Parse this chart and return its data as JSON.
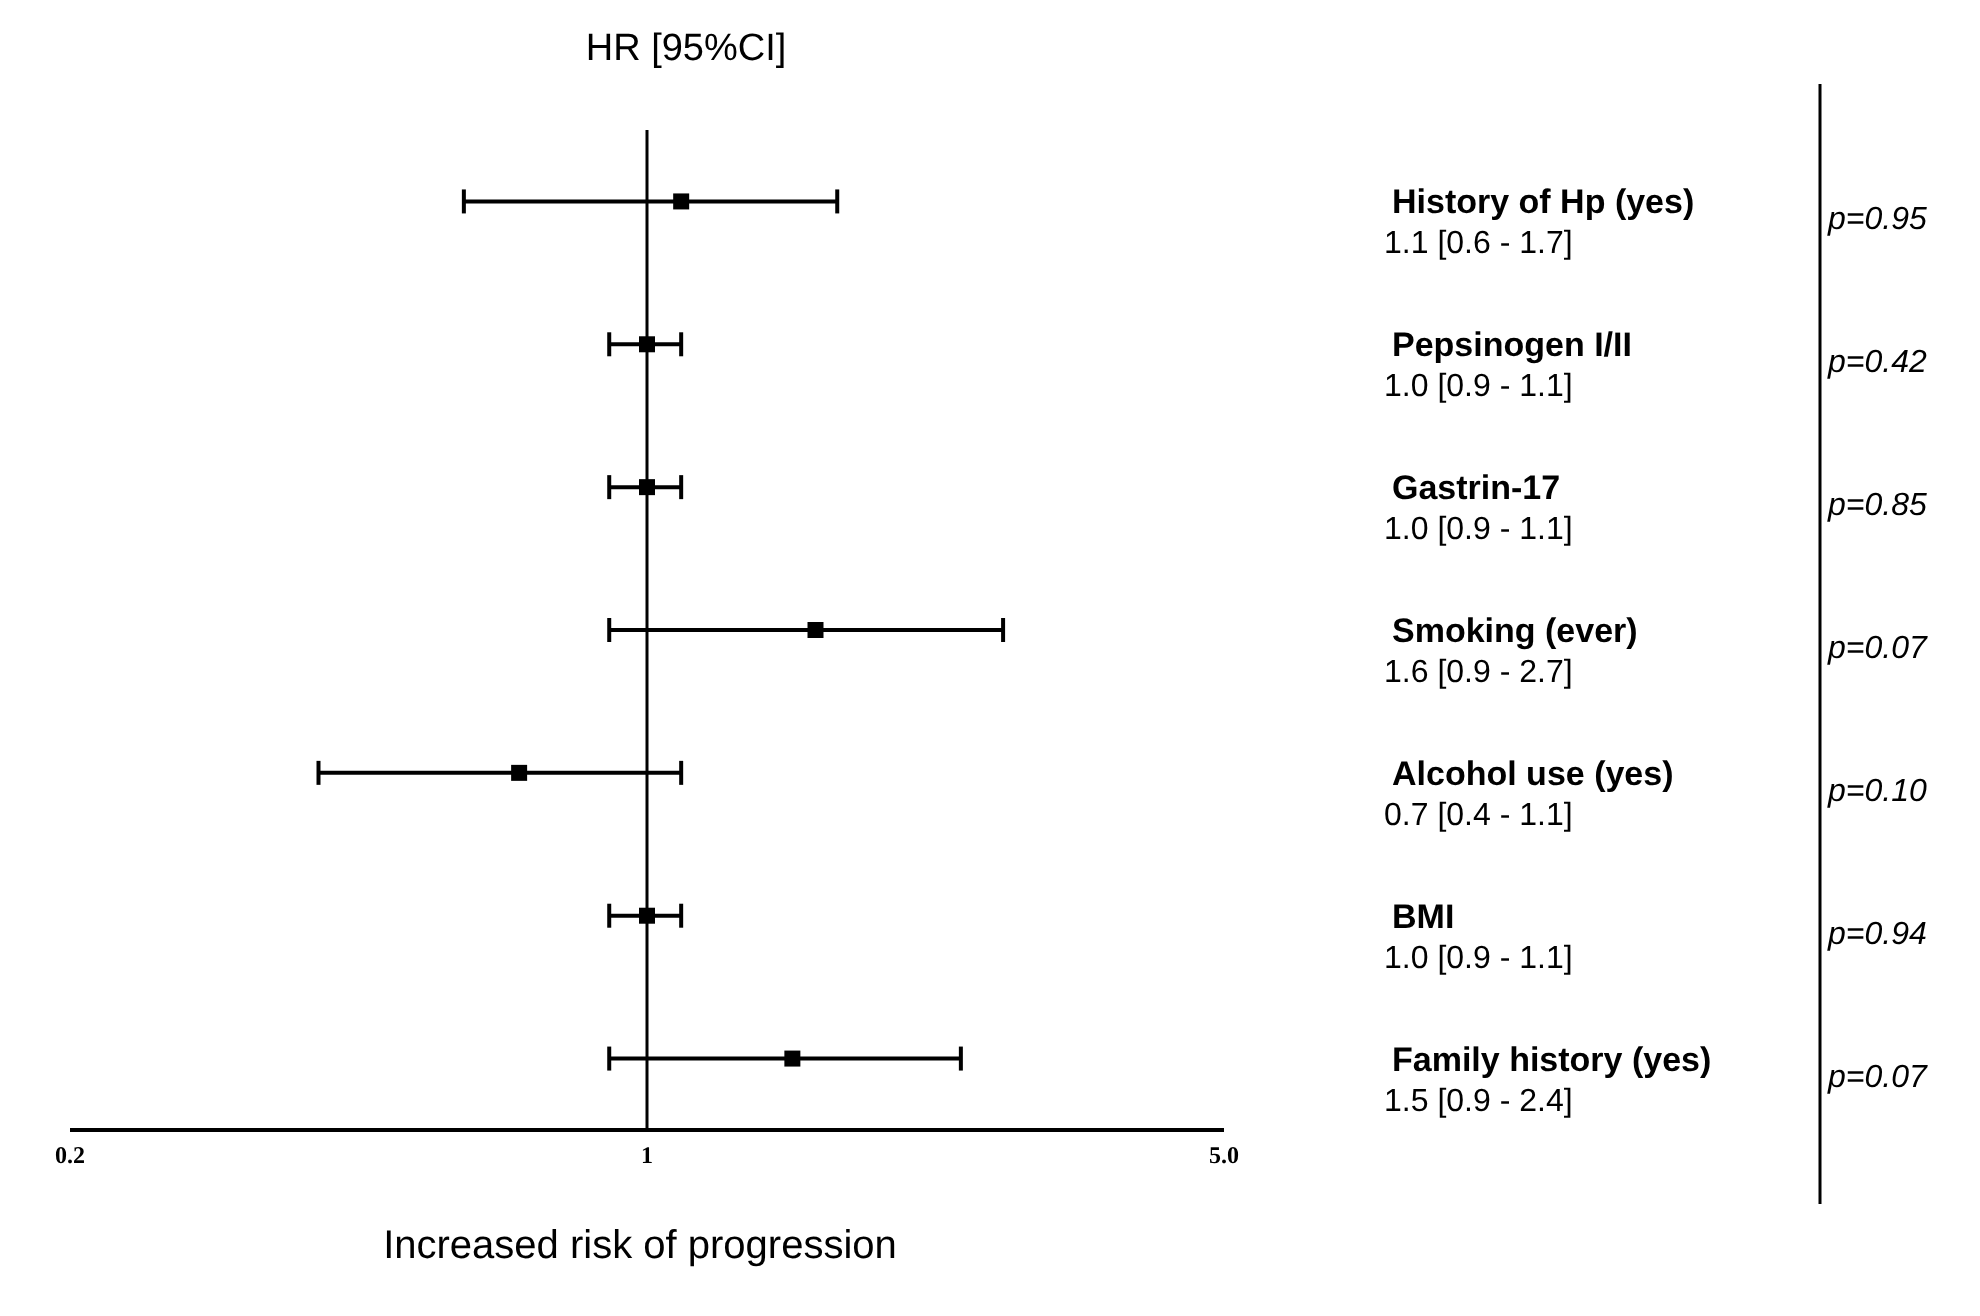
{
  "chart_data": {
    "type": "scatter",
    "orientation": "horizontal",
    "title": "HR [95%CI]",
    "xlabel": "Increased risk of progression",
    "categories": [
      "History of  Hp  (yes)",
      "Pepsinogen  I/II",
      "Gastrin-17",
      "Smoking  (ever)",
      "Alcohol use  (yes)",
      "BMI",
      "Family history (yes)"
    ],
    "values": [
      1.1,
      1.0,
      1.0,
      1.6,
      0.7,
      1.0,
      1.5
    ],
    "errors": [
      [
        0.6,
        1.7
      ],
      [
        0.9,
        1.1
      ],
      [
        0.9,
        1.1
      ],
      [
        0.9,
        2.7
      ],
      [
        0.4,
        1.1
      ],
      [
        0.9,
        1.1
      ],
      [
        0.9,
        2.4
      ]
    ],
    "value_labels": [
      "1.1 [0.6 - 1.7]",
      "1.0 [0.9 - 1.1]",
      "1.0 [0.9 - 1.1]",
      "1.6 [0.9 - 2.7]",
      "0.7 [0.4 - 1.1]",
      "1.0 [0.9 - 1.1]",
      "1.5 [0.9 - 2.4]"
    ],
    "color": "#000000",
    "marker": "square",
    "log": "x",
    "xlim": [
      0.2,
      5
    ],
    "xticks": [
      0.2,
      1,
      {
        "value": 5,
        "label": "5.0"
      }
    ],
    "ref_lines": [
      {
        "axis": "x",
        "value": 1,
        "color": "#000000"
      }
    ],
    "annotations": [
      "p=0.95",
      "p=0.42",
      "p=0.85",
      "p=0.07",
      "p=0.10",
      "p=0.94",
      "p=0.07"
    ]
  }
}
